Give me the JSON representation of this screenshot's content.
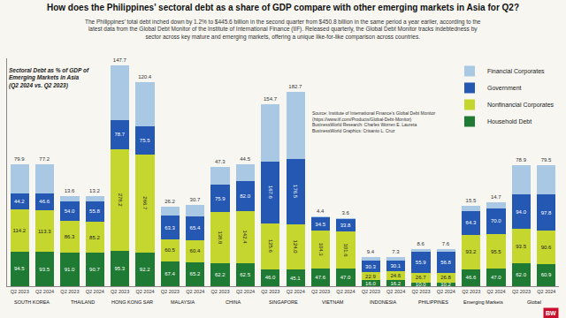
{
  "chart_data": {
    "type": "bar",
    "title": "How does the Philippines’ sectoral debt as a share of GDP compare with other emerging markets in Asia for Q2?",
    "subtitle": "The Philippines’ total debt inched down by 1.2% to $445.6 billion in the second quarter from $450.8 billion in the same period a year earlier, according to the latest data from the Global Debt Monitor of the Institute of International Finance (IIF). Released quarterly, the Global Debt Monitor tracks indebtedness by sector across key mature and emerging markets, offering a unique like-for-like comparison across countries.",
    "chart_label": [
      "Sectoral Debt as % of GDP of",
      "Emerging Markets in Asia",
      "(Q2 2024 vs. Q2 2023)"
    ],
    "source": [
      "Source: Institute of International Finance’s Global Debt Monitor",
      "(https://www.iif.com/Products/Global-Debt-Monitor)",
      "BusinessWorld Research: Charles Worren E. Laureta",
      "BusinessWorld Graphics: Crisanto L. Cruz"
    ],
    "logo": "BW",
    "stacked": true,
    "data_labels": true,
    "tick_labels": "x",
    "legend": "top right",
    "groups": [
      "SOUTH KOREA",
      "THAILAND",
      "HONG KONG SAR",
      "MALAYSIA",
      "CHINA",
      "SINGAPORE",
      "VIETNAM",
      "INDONESIA",
      "PHILIPPINES",
      "Emerging Markets",
      "Global"
    ],
    "categories": [
      "Q2 2023",
      "Q2 2024",
      "Q2 2023",
      "Q2 2024",
      "Q2 2023",
      "Q2 2024",
      "Q2 2023",
      "Q2 2024",
      "Q2 2023",
      "Q2 2024",
      "Q2 2023",
      "Q2 2024",
      "Q2 2023",
      "Q2 2024",
      "Q2 2023",
      "Q2 2024",
      "Q2 2023",
      "Q2 2024",
      "Q2 2023",
      "Q2 2024",
      "Q2 2023",
      "Q2 2024"
    ],
    "series": [
      {
        "name": "Household Debt",
        "color": "#1f7a33",
        "values": [
          94.5,
          93.5,
          91.0,
          90.7,
          95.3,
          92.2,
          67.4,
          65.2,
          62.2,
          62.5,
          46.0,
          45.1,
          47.6,
          47.0,
          16.0,
          16.2,
          10.0,
          10.2,
          46.6,
          47.0,
          62.0,
          60.9
        ]
      },
      {
        "name": "Nonfinancial Corporates",
        "color": "#c5d62f",
        "values": [
          114.2,
          113.3,
          86.3,
          85.2,
          278.2,
          266.7,
          60.5,
          60.4,
          138.8,
          142.4,
          125.6,
          124.0,
          104.3,
          101.6,
          22.9,
          24.6,
          26.7,
          26.8,
          93.2,
          95.5,
          93.5,
          90.6
        ]
      },
      {
        "name": "Government",
        "color": "#2458b3",
        "values": [
          44.2,
          46.6,
          54.0,
          55.8,
          78.7,
          75.5,
          63.3,
          65.4,
          75.9,
          82.0,
          167.6,
          176.5,
          34.5,
          33.8,
          30.3,
          30.1,
          55.9,
          56.8,
          64.3,
          70.0,
          94.0,
          97.8
        ]
      },
      {
        "name": "Financial Corporates",
        "color": "#a8c8e3",
        "values": [
          79.9,
          77.2,
          13.6,
          13.2,
          147.7,
          120.4,
          26.2,
          30.7,
          47.3,
          44.5,
          154.7,
          182.7,
          4.4,
          3.6,
          9.4,
          7.3,
          8.6,
          7.6,
          15.5,
          14.7,
          78.9,
          79.5
        ]
      }
    ],
    "ylim": [
      0,
      620
    ]
  }
}
